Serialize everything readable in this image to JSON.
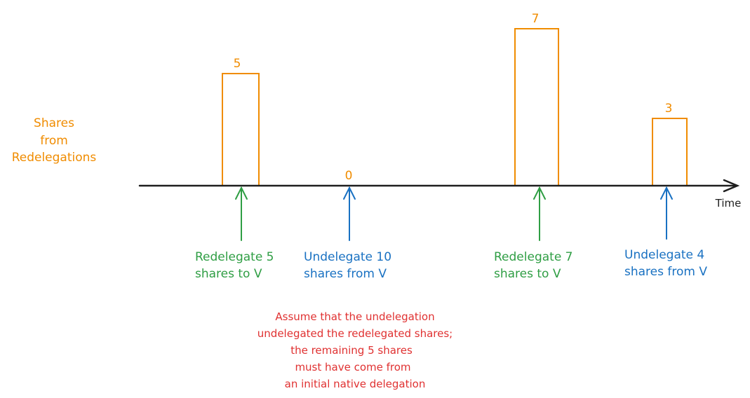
{
  "ylabel_lines": [
    "Shares",
    "from",
    "Redelegations"
  ],
  "axis_label": "Time",
  "bars": [
    {
      "value": 5,
      "label": "5"
    },
    {
      "value": 0,
      "label": "0"
    },
    {
      "value": 7,
      "label": "7"
    },
    {
      "value": 3,
      "label": "3"
    }
  ],
  "events": [
    {
      "type": "redelegate",
      "lines": [
        "Redelegate 5",
        "shares to V"
      ]
    },
    {
      "type": "undelegate",
      "lines": [
        "Undelegate 10",
        "shares from V"
      ]
    },
    {
      "type": "redelegate",
      "lines": [
        "Redelegate 7",
        "shares to V"
      ]
    },
    {
      "type": "undelegate",
      "lines": [
        "Undelegate 4",
        "shares from V"
      ]
    }
  ],
  "note_lines": [
    "Assume that the undelegation",
    "undelegated the redelegated shares;",
    "the remaining 5 shares",
    "must have come from",
    "an initial native delegation"
  ],
  "colors": {
    "bar": "#f08c00",
    "redelegate": "#2f9e44",
    "undelegate": "#1971c2",
    "note": "#e03131",
    "axis": "#1e1e1e"
  }
}
